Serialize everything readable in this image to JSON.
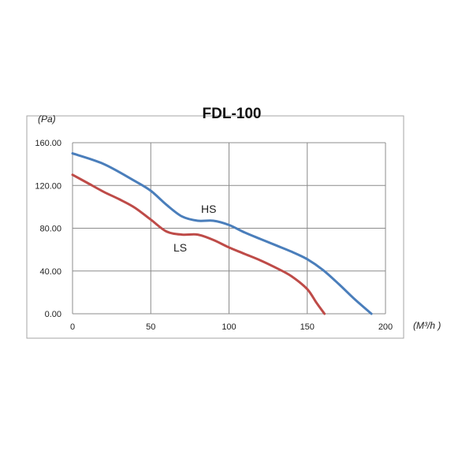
{
  "chart_data": {
    "type": "line",
    "title": "FDL-100",
    "ylabel": "(Pa)",
    "xlabel": "(M³/h )",
    "xlim": [
      0,
      200
    ],
    "ylim": [
      0,
      160
    ],
    "x_ticks": [
      "0",
      "50",
      "100",
      "150",
      "200"
    ],
    "y_ticks": [
      "0.00",
      "40.00",
      "80.00",
      "120.00",
      "160.00"
    ],
    "grid": true,
    "series": [
      {
        "name": "HS",
        "color": "#4a7ebb",
        "points": [
          [
            0,
            150
          ],
          [
            20,
            140
          ],
          [
            40,
            124
          ],
          [
            50,
            115
          ],
          [
            60,
            102
          ],
          [
            70,
            91
          ],
          [
            80,
            87
          ],
          [
            90,
            87
          ],
          [
            100,
            83
          ],
          [
            110,
            76
          ],
          [
            120,
            70
          ],
          [
            130,
            64
          ],
          [
            140,
            58
          ],
          [
            150,
            51
          ],
          [
            160,
            41
          ],
          [
            170,
            28
          ],
          [
            180,
            14
          ],
          [
            191,
            0
          ]
        ]
      },
      {
        "name": "LS",
        "color": "#be4b48",
        "points": [
          [
            0,
            130
          ],
          [
            10,
            122
          ],
          [
            20,
            114
          ],
          [
            30,
            107
          ],
          [
            40,
            99
          ],
          [
            50,
            88
          ],
          [
            60,
            77
          ],
          [
            70,
            74
          ],
          [
            80,
            74
          ],
          [
            90,
            69
          ],
          [
            100,
            62
          ],
          [
            110,
            56
          ],
          [
            120,
            50
          ],
          [
            130,
            43
          ],
          [
            140,
            35
          ],
          [
            150,
            23
          ],
          [
            156,
            10
          ],
          [
            161,
            0
          ]
        ]
      }
    ]
  }
}
